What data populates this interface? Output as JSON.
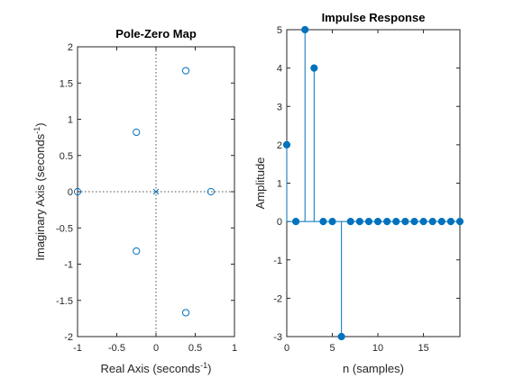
{
  "colors": {
    "marker": "#0072BD",
    "axis": "#262626",
    "crosshair": "#4d4d4d"
  },
  "chart_data": [
    {
      "type": "scatter",
      "title": "Pole-Zero Map",
      "xlabel": {
        "text": "Real Axis (seconds",
        "sup": "-1",
        "close": ")"
      },
      "ylabel": {
        "text": "Imaginary Axis (seconds",
        "sup": "-1",
        "close": ")"
      },
      "xlim": [
        -1,
        1
      ],
      "ylim": [
        -2,
        2
      ],
      "x_ticks": [
        "-1",
        "-0.5",
        "0",
        "0.5",
        "1"
      ],
      "x_tick_values": [
        -1,
        -0.5,
        0,
        0.5,
        1
      ],
      "y_ticks": [
        "2",
        "1.5",
        "1",
        "0.5",
        "0",
        "-0.5",
        "-1",
        "-1.5",
        "-2"
      ],
      "y_tick_values": [
        2,
        1.5,
        1,
        0.5,
        0,
        -0.5,
        -1,
        -1.5,
        -2
      ],
      "zeros": [
        {
          "re": 0.38,
          "im": 1.67
        },
        {
          "re": 0.38,
          "im": -1.67
        },
        {
          "re": -0.25,
          "im": 0.82
        },
        {
          "re": -0.25,
          "im": -0.82
        },
        {
          "re": -1.0,
          "im": 0
        },
        {
          "re": 0.7,
          "im": 0
        }
      ],
      "poles": [
        {
          "re": 0,
          "im": 0
        }
      ],
      "grid": false
    },
    {
      "type": "stem",
      "title": "Impulse Response",
      "xlabel": "n (samples)",
      "ylabel": "Amplitude",
      "xlim": [
        0,
        19
      ],
      "ylim": [
        -3,
        5
      ],
      "x_ticks": [
        "0",
        "5",
        "10",
        "15"
      ],
      "x_tick_values": [
        0,
        5,
        10,
        15
      ],
      "y_ticks": [
        "5",
        "4",
        "3",
        "2",
        "1",
        "0",
        "-1",
        "-2",
        "-3"
      ],
      "y_tick_values": [
        5,
        4,
        3,
        2,
        1,
        0,
        -1,
        -2,
        -3
      ],
      "x": [
        0,
        1,
        2,
        3,
        4,
        5,
        6,
        7,
        8,
        9,
        10,
        11,
        12,
        13,
        14,
        15,
        16,
        17,
        18,
        19
      ],
      "values": [
        2,
        0,
        5,
        4,
        0,
        0,
        -3,
        0,
        0,
        0,
        0,
        0,
        0,
        0,
        0,
        0,
        0,
        0,
        0,
        0
      ],
      "grid": false
    }
  ]
}
